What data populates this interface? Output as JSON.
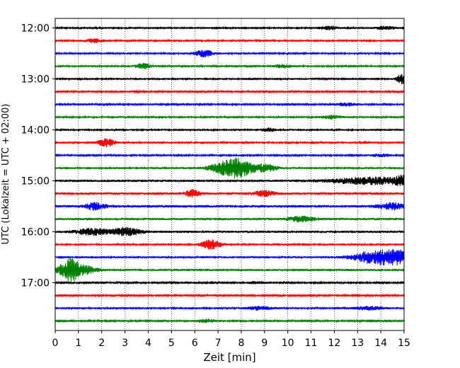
{
  "chart_data": {
    "type": "line",
    "title": "",
    "xlabel": "Zeit  [min]",
    "ylabel": "UTC (Lokalzeit = UTC + 02:00)",
    "xlim": [
      0,
      15
    ],
    "x_ticks": [
      "0",
      "1",
      "2",
      "3",
      "4",
      "5",
      "6",
      "7",
      "8",
      "9",
      "10",
      "11",
      "12",
      "13",
      "14",
      "15"
    ],
    "y_ticks": [
      "12:00",
      "13:00",
      "14:00",
      "15:00",
      "16:00",
      "17:00"
    ],
    "grid": "vertical dotted lines at each minute",
    "trace_interval_min": 15,
    "trace_start": "12:00",
    "trace_end": "17:45",
    "color_cycle": [
      "#000000",
      "#ff0000",
      "#0000ff",
      "#008000"
    ],
    "traces": [
      {
        "start": "12:00",
        "color": "#000000",
        "amp": 1.0,
        "events": [
          {
            "t": 11.8,
            "a": 2,
            "d": 0.3
          },
          {
            "t": 14.2,
            "a": 2,
            "d": 0.3
          }
        ]
      },
      {
        "start": "12:15",
        "color": "#ff0000",
        "amp": 1.0,
        "events": [
          {
            "t": 1.7,
            "a": 2,
            "d": 0.3
          }
        ]
      },
      {
        "start": "12:30",
        "color": "#0000ff",
        "amp": 1.0,
        "events": [
          {
            "t": 6.4,
            "a": 4,
            "d": 0.3
          }
        ]
      },
      {
        "start": "12:45",
        "color": "#008000",
        "amp": 1.0,
        "events": [
          {
            "t": 3.8,
            "a": 3,
            "d": 0.25
          },
          {
            "t": 9.8,
            "a": 2,
            "d": 0.25
          }
        ]
      },
      {
        "start": "13:00",
        "color": "#000000",
        "amp": 1.1,
        "events": [
          {
            "t": 14.9,
            "a": 6,
            "d": 0.15
          }
        ]
      },
      {
        "start": "13:15",
        "color": "#ff0000",
        "amp": 0.8,
        "events": [
          {
            "t": 3.6,
            "a": 1.5,
            "d": 0.3
          }
        ]
      },
      {
        "start": "13:30",
        "color": "#0000ff",
        "amp": 0.9,
        "events": [
          {
            "t": 12.5,
            "a": 2,
            "d": 0.3
          }
        ]
      },
      {
        "start": "13:45",
        "color": "#008000",
        "amp": 1.0,
        "events": [
          {
            "t": 11.9,
            "a": 2,
            "d": 0.3
          }
        ]
      },
      {
        "start": "14:00",
        "color": "#000000",
        "amp": 1.1,
        "events": [
          {
            "t": 9.2,
            "a": 2,
            "d": 0.2
          }
        ]
      },
      {
        "start": "14:15",
        "color": "#ff0000",
        "amp": 1.0,
        "events": [
          {
            "t": 2.2,
            "a": 5,
            "d": 0.25
          }
        ]
      },
      {
        "start": "14:30",
        "color": "#0000ff",
        "amp": 0.9,
        "events": [
          {
            "t": 14.0,
            "a": 1.5,
            "d": 0.3
          }
        ]
      },
      {
        "start": "14:45",
        "color": "#008000",
        "amp": 1.1,
        "events": [
          {
            "t": 7.7,
            "a": 12,
            "d": 0.6
          },
          {
            "t": 9.1,
            "a": 4,
            "d": 0.3
          }
        ]
      },
      {
        "start": "15:00",
        "color": "#000000",
        "amp": 1.5,
        "events": [
          {
            "t": 13.6,
            "a": 4,
            "d": 1.2
          },
          {
            "t": 14.9,
            "a": 4,
            "d": 0.2
          }
        ]
      },
      {
        "start": "15:15",
        "color": "#ff0000",
        "amp": 1.6,
        "events": [
          {
            "t": 5.9,
            "a": 4,
            "d": 0.2
          },
          {
            "t": 9.0,
            "a": 3,
            "d": 0.3
          }
        ]
      },
      {
        "start": "15:30",
        "color": "#0000ff",
        "amp": 1.6,
        "events": [
          {
            "t": 1.7,
            "a": 4,
            "d": 0.3
          },
          {
            "t": 14.5,
            "a": 4,
            "d": 0.4
          }
        ]
      },
      {
        "start": "15:45",
        "color": "#008000",
        "amp": 1.4,
        "events": [
          {
            "t": 10.6,
            "a": 3,
            "d": 0.4
          }
        ]
      },
      {
        "start": "16:00",
        "color": "#000000",
        "amp": 1.4,
        "events": [
          {
            "t": 1.6,
            "a": 4,
            "d": 0.5
          },
          {
            "t": 3.1,
            "a": 5,
            "d": 0.4
          }
        ]
      },
      {
        "start": "16:15",
        "color": "#ff0000",
        "amp": 1.0,
        "events": [
          {
            "t": 6.7,
            "a": 6,
            "d": 0.3
          }
        ]
      },
      {
        "start": "16:30",
        "color": "#0000ff",
        "amp": 1.2,
        "events": [
          {
            "t": 13.9,
            "a": 9,
            "d": 0.7
          },
          {
            "t": 14.8,
            "a": 5,
            "d": 0.3
          }
        ]
      },
      {
        "start": "16:45",
        "color": "#008000",
        "amp": 1.3,
        "events": [
          {
            "t": 0.6,
            "a": 12,
            "d": 0.3
          },
          {
            "t": 1.2,
            "a": 5,
            "d": 0.4
          }
        ]
      },
      {
        "start": "17:00",
        "color": "#000000",
        "amp": 0.8,
        "events": [
          {
            "t": 8.7,
            "a": 1.5,
            "d": 0.3
          }
        ]
      },
      {
        "start": "17:15",
        "color": "#ff0000",
        "amp": 0.8,
        "events": []
      },
      {
        "start": "17:30",
        "color": "#0000ff",
        "amp": 1.0,
        "events": [
          {
            "t": 8.8,
            "a": 2,
            "d": 0.4
          },
          {
            "t": 13.5,
            "a": 2.5,
            "d": 0.4
          }
        ]
      },
      {
        "start": "17:45",
        "color": "#008000",
        "amp": 0.9,
        "events": [
          {
            "t": 6.5,
            "a": 2,
            "d": 0.3
          }
        ]
      }
    ]
  }
}
